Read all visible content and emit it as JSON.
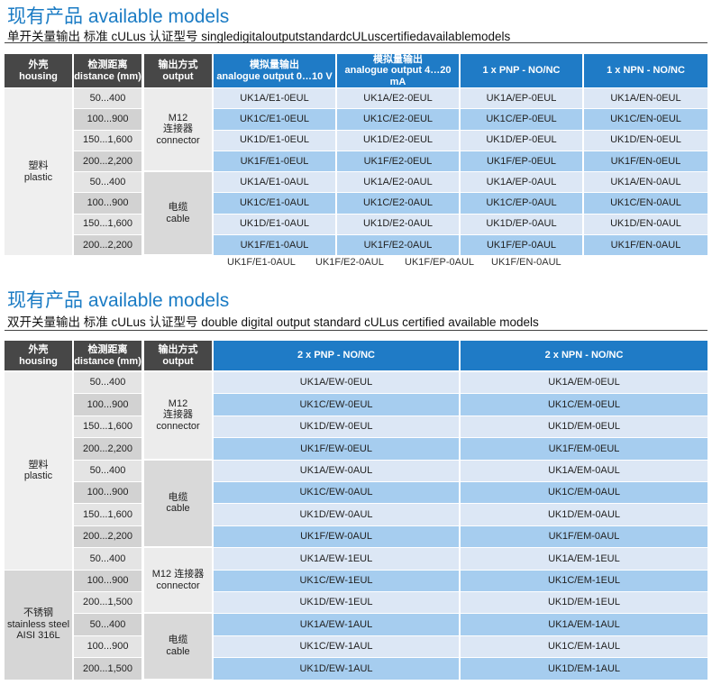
{
  "sections": [
    {
      "title": "现有产品 available models",
      "subtitle": "单开关量输出 标准 cULus 认证型号 singledigitaloutputstandardcULuscertifiedavailablemodels",
      "table": {
        "header": [
          [
            "外壳",
            "housing"
          ],
          [
            "检测距离",
            "distance (mm)"
          ],
          [
            "输出方式",
            "output"
          ],
          [
            "模拟量输出",
            "analogue output 0…10 V"
          ],
          [
            "模拟量输出",
            "analogue output 4…20 mA"
          ],
          [
            "1 x PNP - NO/NC"
          ],
          [
            "1 x NPN - NO/NC"
          ]
        ],
        "housing": [
          {
            "label": [
              "塑料",
              "plastic"
            ],
            "distances": [
              "50...400",
              "100...900",
              "150...1,600",
              "200...2,200",
              "50...400",
              "100...900",
              "150...1,600",
              "200...2,200"
            ]
          }
        ],
        "outputs": [
          {
            "label": [
              "M12",
              "连接器",
              "connector"
            ],
            "models": [
              [
                "UK1A/E1-0EUL",
                "UK1A/E2-0EUL",
                "UK1A/EP-0EUL",
                "UK1A/EN-0EUL"
              ],
              [
                "UK1C/E1-0EUL",
                "UK1C/E2-0EUL",
                "UK1C/EP-0EUL",
                "UK1C/EN-0EUL"
              ],
              [
                "UK1D/E1-0EUL",
                "UK1D/E2-0EUL",
                "UK1D/EP-0EUL",
                "UK1D/EN-0EUL"
              ],
              [
                "UK1F/E1-0EUL",
                "UK1F/E2-0EUL",
                "UK1F/EP-0EUL",
                "UK1F/EN-0EUL"
              ]
            ]
          },
          {
            "label": [
              "电缆",
              "cable"
            ],
            "models": [
              [
                "UK1A/E1-0AUL",
                "UK1A/E2-0AUL",
                "UK1A/EP-0AUL",
                "UK1A/EN-0AUL"
              ],
              [
                "UK1C/E1-0AUL",
                "UK1C/E2-0AUL",
                "UK1C/EP-0AUL",
                "UK1C/EN-0AUL"
              ],
              [
                "UK1D/E1-0AUL",
                "UK1D/E2-0AUL",
                "UK1D/EP-0AUL",
                "UK1D/EN-0AUL"
              ],
              [
                "UK1F/E1-0AUL",
                "UK1F/E2-0AUL",
                "UK1F/EP-0AUL",
                "UK1F/EN-0AUL"
              ]
            ]
          }
        ],
        "trailing": [
          "UK1F/E1-0AUL",
          "UK1F/E2-0AUL",
          "UK1F/EP-0AUL",
          "UK1F/EN-0AUL"
        ]
      }
    },
    {
      "title": "现有产品 available models",
      "subtitle": "双开关量输出 标准 cULus 认证型号 double digital output standard cULus certified available models",
      "table": {
        "header": [
          [
            "外壳",
            "housing"
          ],
          [
            "检测距离",
            "distance (mm)"
          ],
          [
            "输出方式",
            "output"
          ],
          [
            "2 x PNP - NO/NC"
          ],
          [
            "2 x NPN - NO/NC"
          ]
        ],
        "housing": [
          {
            "label": [
              "塑料",
              "plastic"
            ],
            "distances": [
              "50...400",
              "100...900",
              "150...1,600",
              "200...2,200",
              "50...400",
              "100...900",
              "150...1,600",
              "200...2,200",
              "50...400"
            ]
          },
          {
            "label": [
              "不锈钢",
              "stainless steel",
              "AISI 316L"
            ],
            "distances": [
              "100...900",
              "200...1,500",
              "50...400",
              "100...900",
              "200...1,500"
            ]
          }
        ],
        "outputs": [
          {
            "label": [
              "M12",
              "连接器",
              "connector"
            ],
            "models": [
              [
                "UK1A/EW-0EUL",
                "UK1A/EM-0EUL"
              ],
              [
                "UK1C/EW-0EUL",
                "UK1C/EM-0EUL"
              ],
              [
                "UK1D/EW-0EUL",
                "UK1D/EM-0EUL"
              ],
              [
                "UK1F/EW-0EUL",
                "UK1F/EM-0EUL"
              ]
            ]
          },
          {
            "label": [
              "电缆",
              "cable"
            ],
            "models": [
              [
                "UK1A/EW-0AUL",
                "UK1A/EM-0AUL"
              ],
              [
                "UK1C/EW-0AUL",
                "UK1C/EM-0AUL"
              ],
              [
                "UK1D/EW-0AUL",
                "UK1D/EM-0AUL"
              ],
              [
                "UK1F/EW-0AUL",
                "UK1F/EM-0AUL"
              ]
            ]
          },
          {
            "label": [
              "M12 连接器",
              "connector"
            ],
            "models": [
              [
                "UK1A/EW-1EUL",
                "UK1A/EM-1EUL"
              ],
              [
                "UK1C/EW-1EUL",
                "UK1C/EM-1EUL"
              ],
              [
                "UK1D/EW-1EUL",
                "UK1D/EM-1EUL"
              ]
            ]
          },
          {
            "label": [
              "电缆",
              "cable"
            ],
            "models": [
              [
                "UK1A/EW-1AUL",
                "UK1A/EM-1AUL"
              ],
              [
                "UK1C/EW-1AUL",
                "UK1C/EM-1AUL"
              ],
              [
                "UK1D/EW-1AUL",
                "UK1D/EM-1AUL"
              ]
            ]
          }
        ]
      }
    }
  ]
}
